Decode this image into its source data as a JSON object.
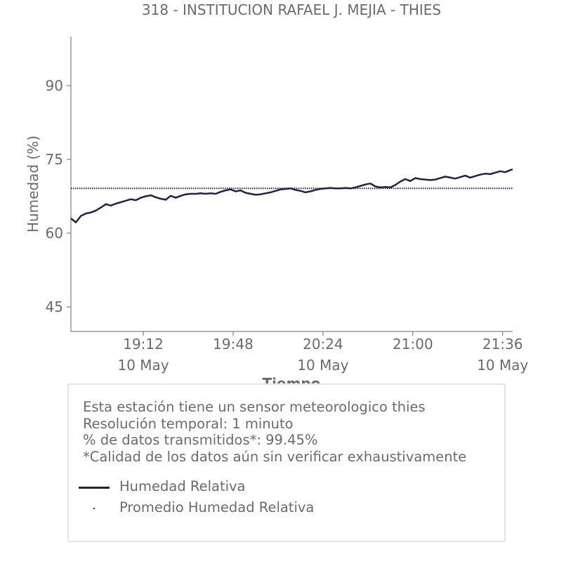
{
  "chart_data": {
    "type": "line",
    "title": "318 - INSTITUCION RAFAEL J. MEJIA - THIES",
    "xlabel": "Tiempo",
    "ylabel": "Humedad (%)",
    "ylim": [
      40,
      100
    ],
    "yticks": [
      45,
      60,
      75,
      90
    ],
    "x_range": [
      "18:43",
      "21:40"
    ],
    "xticks": [
      {
        "time": "19:12",
        "label": "19:12",
        "date": "10 May"
      },
      {
        "time": "19:48",
        "label": "19:48",
        "date": ""
      },
      {
        "time": "20:24",
        "label": "20:24",
        "date": "10 May"
      },
      {
        "time": "21:00",
        "label": "21:00",
        "date": ""
      },
      {
        "time": "21:36",
        "label": "21:36",
        "date": "10 May"
      }
    ],
    "series": [
      {
        "name": "Humedad Relativa",
        "color": "#222244",
        "style": "solid",
        "points": [
          [
            "18:43",
            63.0
          ],
          [
            "18:45",
            62.2
          ],
          [
            "18:47",
            63.5
          ],
          [
            "18:49",
            64.0
          ],
          [
            "18:51",
            64.2
          ],
          [
            "18:53",
            64.6
          ],
          [
            "18:55",
            65.2
          ],
          [
            "18:57",
            65.9
          ],
          [
            "18:59",
            65.6
          ],
          [
            "19:01",
            66.0
          ],
          [
            "19:03",
            66.3
          ],
          [
            "19:05",
            66.6
          ],
          [
            "19:07",
            66.9
          ],
          [
            "19:09",
            66.7
          ],
          [
            "19:11",
            67.2
          ],
          [
            "19:13",
            67.5
          ],
          [
            "19:15",
            67.7
          ],
          [
            "19:17",
            67.3
          ],
          [
            "19:19",
            67.0
          ],
          [
            "19:21",
            66.8
          ],
          [
            "19:23",
            67.6
          ],
          [
            "19:25",
            67.2
          ],
          [
            "19:27",
            67.6
          ],
          [
            "19:29",
            67.9
          ],
          [
            "19:31",
            68.0
          ],
          [
            "19:33",
            68.0
          ],
          [
            "19:35",
            68.1
          ],
          [
            "19:37",
            68.0
          ],
          [
            "19:39",
            68.1
          ],
          [
            "19:41",
            68.0
          ],
          [
            "19:43",
            68.4
          ],
          [
            "19:45",
            68.7
          ],
          [
            "19:47",
            68.9
          ],
          [
            "19:49",
            68.5
          ],
          [
            "19:51",
            68.7
          ],
          [
            "19:53",
            68.2
          ],
          [
            "19:55",
            68.0
          ],
          [
            "19:57",
            67.8
          ],
          [
            "19:59",
            67.9
          ],
          [
            "20:01",
            68.1
          ],
          [
            "20:03",
            68.3
          ],
          [
            "20:05",
            68.6
          ],
          [
            "20:07",
            68.9
          ],
          [
            "20:09",
            69.0
          ],
          [
            "20:11",
            69.1
          ],
          [
            "20:13",
            68.8
          ],
          [
            "20:15",
            68.6
          ],
          [
            "20:17",
            68.3
          ],
          [
            "20:19",
            68.5
          ],
          [
            "20:21",
            68.8
          ],
          [
            "20:23",
            69.0
          ],
          [
            "20:25",
            69.1
          ],
          [
            "20:27",
            69.2
          ],
          [
            "20:29",
            69.1
          ],
          [
            "20:31",
            69.1
          ],
          [
            "20:33",
            69.2
          ],
          [
            "20:35",
            69.1
          ],
          [
            "20:37",
            69.3
          ],
          [
            "20:39",
            69.6
          ],
          [
            "20:41",
            69.9
          ],
          [
            "20:43",
            70.1
          ],
          [
            "20:45",
            69.5
          ],
          [
            "20:47",
            69.3
          ],
          [
            "20:49",
            69.4
          ],
          [
            "20:51",
            69.3
          ],
          [
            "20:53",
            69.8
          ],
          [
            "20:55",
            70.5
          ],
          [
            "20:57",
            71.0
          ],
          [
            "20:59",
            70.6
          ],
          [
            "21:01",
            71.2
          ],
          [
            "21:03",
            71.0
          ],
          [
            "21:05",
            70.9
          ],
          [
            "21:07",
            70.8
          ],
          [
            "21:09",
            70.9
          ],
          [
            "21:11",
            71.2
          ],
          [
            "21:13",
            71.5
          ],
          [
            "21:15",
            71.3
          ],
          [
            "21:17",
            71.1
          ],
          [
            "21:19",
            71.4
          ],
          [
            "21:21",
            71.7
          ],
          [
            "21:23",
            71.3
          ],
          [
            "21:25",
            71.6
          ],
          [
            "21:27",
            71.9
          ],
          [
            "21:29",
            72.1
          ],
          [
            "21:31",
            72.0
          ],
          [
            "21:33",
            72.3
          ],
          [
            "21:35",
            72.6
          ],
          [
            "21:37",
            72.4
          ],
          [
            "21:39",
            72.8
          ],
          [
            "21:40",
            73.0
          ]
        ]
      },
      {
        "name": "Promedio Humedad Relativa",
        "color": "#222244",
        "style": "dotted",
        "constant": 69.1
      }
    ],
    "legend": "inside-box-below-info",
    "grid": false
  },
  "info": {
    "lines": [
      "Esta estación tiene un sensor meteorologico thies",
      "Resolución temporal: 1 minuto",
      "% de datos transmitidos*: 99.45%",
      "*Calidad de los datos aún sin verificar exhaustivamente"
    ]
  },
  "legend": {
    "items": [
      {
        "label": "Humedad Relativa"
      },
      {
        "label": "Promedio Humedad Relativa"
      }
    ]
  }
}
